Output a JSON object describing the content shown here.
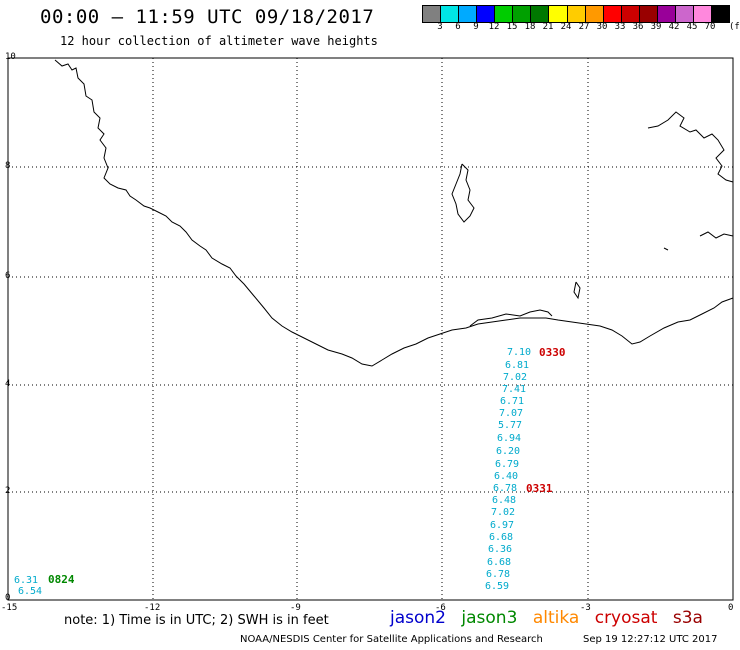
{
  "header": {
    "title": "00:00 – 11:59 UTC 09/18/2017",
    "subtitle": "12 hour collection of altimeter wave heights"
  },
  "legend": {
    "unit": "(ft)",
    "colors": [
      "#808080",
      "#00e5e5",
      "#00aaff",
      "#0000ff",
      "#00cc00",
      "#00a000",
      "#007800",
      "#ffff00",
      "#ffcc00",
      "#ff9900",
      "#ff0000",
      "#cc0000",
      "#990000",
      "#990099",
      "#cc66cc",
      "#ff88dd",
      "#000000"
    ],
    "labels": [
      "3",
      "6",
      "9",
      "12",
      "15",
      "18",
      "21",
      "24",
      "27",
      "30",
      "33",
      "36",
      "39",
      "42",
      "45",
      "70"
    ]
  },
  "axes": {
    "x_labels": [
      "-15",
      "-12",
      "-9",
      "-6",
      "-3",
      "0"
    ],
    "y_labels": [
      "0",
      "2",
      "4",
      "6",
      "8",
      "10"
    ]
  },
  "swh_readings": {
    "track_a": [
      "7.10",
      "6.81",
      "7.02",
      "7.41",
      "6.71",
      "7.07",
      "5.77",
      "6.94",
      "6.20",
      "6.79",
      "6.40",
      "6.78",
      "6.48",
      "7.02",
      "6.97",
      "6.68",
      "6.36",
      "6.68",
      "6.78",
      "6.59"
    ],
    "track_b": [
      "6.31",
      "6.54"
    ]
  },
  "time_labels": {
    "t1": "0330",
    "t2": "0331",
    "t3": "0824"
  },
  "note": "note: 1) Time is in UTC; 2) SWH is in feet",
  "satellites": [
    {
      "name": "jason2",
      "color": "#0000cc"
    },
    {
      "name": "jason3",
      "color": "#008800"
    },
    {
      "name": "altika",
      "color": "#ff8800"
    },
    {
      "name": "cryosat",
      "color": "#cc0000"
    },
    {
      "name": "s3a",
      "color": "#990000"
    }
  ],
  "credit": "NOAA/NESDIS Center for Satellite Applications and Research",
  "timestamp": "Sep 19 12:27:12 UTC 2017"
}
